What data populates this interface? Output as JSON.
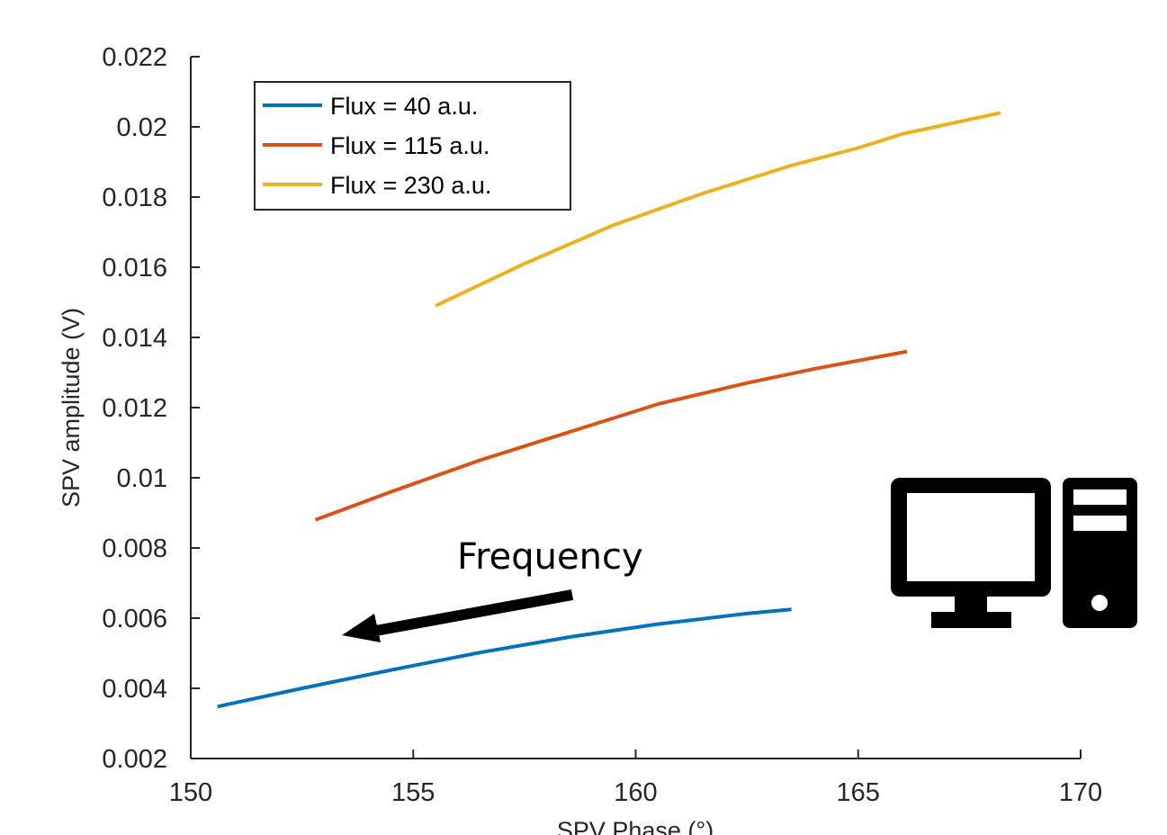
{
  "chart_data": {
    "type": "line",
    "xlabel": "SPV Phase (°)",
    "ylabel": "SPV amplitude (V)",
    "xlim": [
      150,
      170
    ],
    "ylim": [
      0.002,
      0.022
    ],
    "x_ticks": [
      "150",
      "155",
      "160",
      "165",
      "170"
    ],
    "y_ticks": [
      "0.002",
      "0.004",
      "0.006",
      "0.008",
      "0.01",
      "0.012",
      "0.014",
      "0.016",
      "0.018",
      "0.02",
      "0.022"
    ],
    "legend_position": "top-left",
    "series": [
      {
        "name": "Flux = 40 a.u.",
        "color": "#0072BD",
        "x": [
          150.6,
          152.5,
          154.5,
          156.5,
          158.5,
          160.5,
          162.5,
          163.5
        ],
        "y": [
          0.00348,
          0.004,
          0.00452,
          0.00502,
          0.00546,
          0.00583,
          0.00613,
          0.00625
        ]
      },
      {
        "name": "Flux = 115 a.u.",
        "color": "#D95319",
        "x": [
          152.8,
          154.5,
          156.5,
          158.5,
          160.5,
          162.5,
          164.0,
          166.1
        ],
        "y": [
          0.0088,
          0.0096,
          0.0105,
          0.0113,
          0.0121,
          0.0127,
          0.0131,
          0.0136
        ]
      },
      {
        "name": "Flux = 230 a.u.",
        "color": "#EDB120",
        "x": [
          155.5,
          157.5,
          159.5,
          161.5,
          163.5,
          165.0,
          166.0,
          168.2
        ],
        "y": [
          0.0149,
          0.0161,
          0.0172,
          0.0181,
          0.0189,
          0.0194,
          0.0198,
          0.0204
        ]
      }
    ],
    "annotation": {
      "text": "Frequency",
      "arrow_direction": "left"
    }
  },
  "decoration": {
    "icon": "desktop-computer-icon"
  }
}
